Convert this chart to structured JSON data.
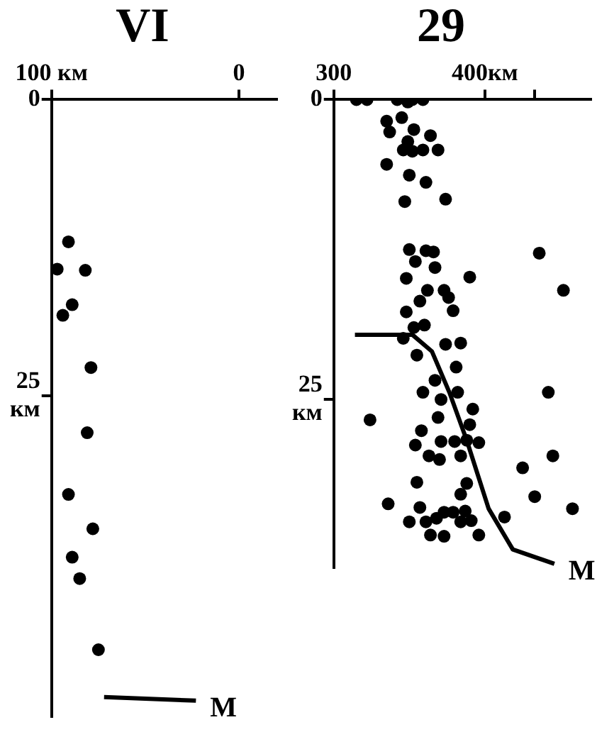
{
  "chart_data": [
    {
      "type": "scatter",
      "title": "VI",
      "xlim": [
        100,
        -20
      ],
      "ylim": [
        52,
        0
      ],
      "xticks": [
        {
          "value": 100,
          "label": "100 км"
        },
        0
      ],
      "yticks": [
        0,
        {
          "value": 25,
          "label": "25\nкм"
        }
      ],
      "grid": false,
      "legend": false,
      "series": [
        {
          "type": "scatter",
          "marker": "circle",
          "color": "#000000",
          "x": [
            91,
            97,
            82,
            89,
            94,
            79,
            81,
            91,
            78,
            89,
            85,
            75
          ],
          "values": [
            12,
            14.3,
            14.4,
            17.3,
            18.2,
            22.6,
            28.1,
            33.3,
            36.2,
            38.6,
            40.4,
            46.4
          ]
        },
        {
          "type": "line",
          "marker": "none",
          "name": "M",
          "color": "#000000",
          "x": [
            72,
            23
          ],
          "values": [
            50.4,
            50.7
          ]
        }
      ]
    },
    {
      "type": "scatter",
      "title": "29",
      "xlim": [
        300,
        470
      ],
      "ylim": [
        39,
        0
      ],
      "xticks": [
        300,
        {
          "value": 400,
          "label": "400км"
        },
        {
          "value": 433,
          "label": null
        }
      ],
      "yticks": [
        0,
        {
          "value": 25,
          "label": "25\nкм"
        }
      ],
      "grid": false,
      "legend": false,
      "series": [
        {
          "type": "scatter",
          "marker": "circle",
          "color": "#000000",
          "x": [
            315,
            322,
            342,
            349,
            359,
            352,
            335,
            345,
            337,
            353,
            364,
            349,
            346,
            352,
            359,
            369,
            335,
            350,
            361,
            347,
            374,
            350,
            361,
            366,
            354,
            367,
            436,
            348,
            390,
            362,
            357,
            373,
            376,
            452,
            348,
            379,
            360,
            353,
            346,
            374,
            384,
            355,
            381,
            367,
            359,
            371,
            382,
            442,
            324,
            369,
            392,
            390,
            358,
            371,
            380,
            388,
            396,
            354,
            363,
            370,
            384,
            445,
            425,
            355,
            388,
            384,
            433,
            336,
            357,
            458,
            350,
            361,
            368,
            373,
            379,
            387,
            391,
            413,
            384,
            364,
            373,
            396
          ],
          "values": [
            0,
            0,
            0,
            0.2,
            0,
            0,
            1.8,
            1.5,
            2.7,
            2.5,
            3,
            3.5,
            4.2,
            4.3,
            4.2,
            4.2,
            5.4,
            6.3,
            6.9,
            8.5,
            8.3,
            12.5,
            12.6,
            12.7,
            13.5,
            14,
            12.8,
            14.9,
            14.8,
            15.9,
            16.8,
            15.9,
            16.5,
            15.9,
            17.7,
            17.6,
            18.8,
            19,
            19.9,
            20.4,
            20.3,
            21.3,
            22.3,
            23.4,
            24.4,
            25,
            24.4,
            24.4,
            26.7,
            26.5,
            25.8,
            27.1,
            27.6,
            28.5,
            28.5,
            28.4,
            28.6,
            28.8,
            29.7,
            30,
            29.7,
            29.7,
            30.7,
            31.9,
            32,
            32.9,
            33.1,
            33.7,
            34,
            34.1,
            35.2,
            35.2,
            34.9,
            34.4,
            34.4,
            34.3,
            35.1,
            34.8,
            35.2,
            36.3,
            36.4,
            36.3
          ]
        },
        {
          "type": "line",
          "marker": "none",
          "name": "M",
          "color": "#000000",
          "x": [
            314,
            352,
            365,
            376.5,
            388,
            402.5,
            418.5,
            446
          ],
          "values": [
            19.6,
            19.6,
            21,
            24.4,
            28.4,
            34.1,
            37.5,
            38.7
          ]
        }
      ]
    }
  ]
}
